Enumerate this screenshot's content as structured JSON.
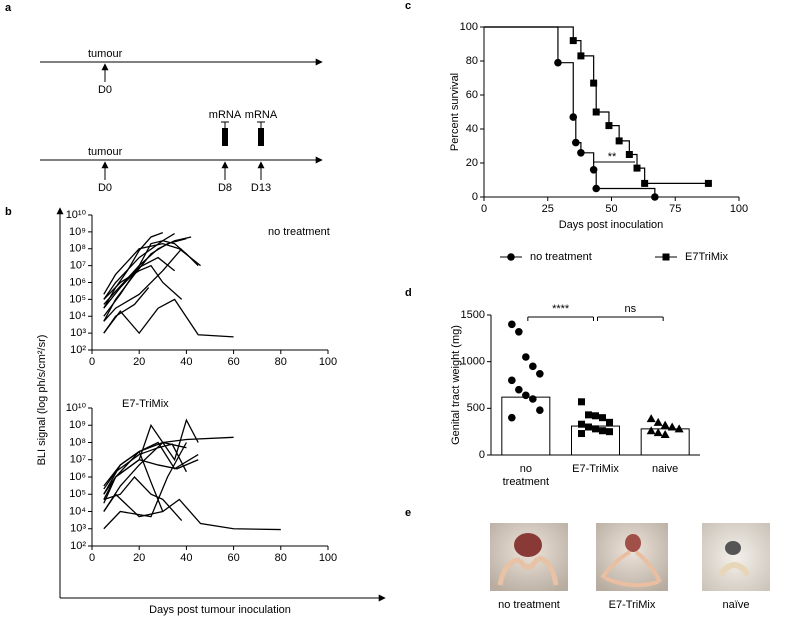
{
  "panel_labels": [
    "a",
    "b",
    "c",
    "d",
    "e"
  ],
  "timeline": {
    "rows": [
      {
        "events": [
          {
            "label": "tumour",
            "day": "D0"
          }
        ]
      },
      {
        "events": [
          {
            "label": "tumour",
            "day": "D0"
          },
          {
            "label": "mRNA",
            "day": "D8"
          },
          {
            "label": "mRNA",
            "day": "D13"
          }
        ]
      }
    ]
  },
  "chart_data": [
    {
      "type": "line",
      "annotation": "no treatment",
      "color": "#000000",
      "log_y": true,
      "y_label": "BLI signal (log ph/s/cm²/sr)",
      "x_label": "Days post tumour inoculation",
      "xlim": [
        0,
        100
      ],
      "xticks": [
        0,
        20,
        40,
        60,
        80,
        100
      ],
      "ylim": [
        100,
        10000000000
      ],
      "yticks": [
        {
          "value": 100,
          "label": "10²"
        },
        {
          "value": 1000,
          "label": "10³"
        },
        {
          "value": 10000,
          "label": "10⁴"
        },
        {
          "value": 100000,
          "label": "10⁵"
        },
        {
          "value": 1000000,
          "label": "10⁶"
        },
        {
          "value": 10000000,
          "label": "10⁷"
        },
        {
          "value": 100000000,
          "label": "10⁸"
        },
        {
          "value": 1000000000,
          "label": "10⁹"
        },
        {
          "value": 10000000000,
          "label": "10¹⁰"
        }
      ],
      "series": [
        {
          "x": [
            5,
            10,
            20,
            30,
            35,
            40,
            45
          ],
          "values": [
            100000,
            1000000,
            30000000,
            300000000,
            200000000,
            50000000,
            10000000
          ]
        },
        {
          "x": [
            5,
            10,
            15,
            20,
            25,
            30
          ],
          "values": [
            30000,
            500000,
            5000000,
            80000000,
            500000000,
            900000000
          ]
        },
        {
          "x": [
            5,
            12,
            20,
            28,
            35,
            42
          ],
          "values": [
            10000,
            200000,
            10000000,
            100000000,
            300000000,
            500000000
          ]
        },
        {
          "x": [
            5,
            10,
            18,
            25,
            32,
            40
          ],
          "values": [
            5000,
            100000,
            3000000,
            50000000,
            200000000,
            400000000
          ]
        },
        {
          "x": [
            5,
            10,
            20,
            30,
            37,
            46
          ],
          "values": [
            200000,
            3000000,
            100000000,
            200000000,
            100000000,
            10000000
          ]
        },
        {
          "x": [
            5,
            12,
            20,
            25,
            30,
            38
          ],
          "values": [
            100000,
            1000000,
            5000000,
            10000000,
            1000000,
            100000
          ]
        },
        {
          "x": [
            5,
            12,
            20,
            28,
            35
          ],
          "values": [
            30000,
            500000,
            8000000,
            30000000,
            5000000
          ]
        },
        {
          "x": [
            5,
            12,
            20,
            28,
            35,
            45,
            60
          ],
          "values": [
            1000,
            20000,
            1000,
            30000,
            100000,
            800,
            600
          ]
        },
        {
          "x": [
            5,
            10,
            20,
            30,
            38
          ],
          "values": [
            5000,
            30000,
            200000,
            5000000,
            100000000
          ]
        },
        {
          "x": [
            5,
            10,
            20,
            25,
            30,
            35
          ],
          "values": [
            50000,
            300000,
            10000000,
            200000000,
            300000000,
            800000000
          ]
        },
        {
          "x": [
            5,
            10,
            18,
            24
          ],
          "values": [
            1000,
            10000,
            50000,
            500000
          ]
        }
      ]
    },
    {
      "type": "line",
      "annotation": "E7-TriMix",
      "color": "#000000",
      "log_y": true,
      "xlim": [
        0,
        100
      ],
      "xticks": [
        0,
        20,
        40,
        60,
        80,
        100
      ],
      "ylim": [
        100,
        10000000000
      ],
      "yticks": [
        {
          "value": 100,
          "label": "10²"
        },
        {
          "value": 1000,
          "label": "10³"
        },
        {
          "value": 10000,
          "label": "10⁴"
        },
        {
          "value": 100000,
          "label": "10⁵"
        },
        {
          "value": 1000000,
          "label": "10⁶"
        },
        {
          "value": 10000000,
          "label": "10⁷"
        },
        {
          "value": 100000000,
          "label": "10⁸"
        },
        {
          "value": 1000000000,
          "label": "10⁹"
        },
        {
          "value": 10000000000,
          "label": "10¹⁰"
        }
      ],
      "series": [
        {
          "x": [
            5,
            10,
            20,
            30,
            40,
            60
          ],
          "values": [
            100000,
            1000000,
            30000000,
            100000000,
            150000000,
            200000000
          ]
        },
        {
          "x": [
            5,
            10,
            20,
            25,
            35,
            40,
            45
          ],
          "values": [
            30000,
            1000000,
            10000000,
            1000000000,
            10000000,
            2000000000,
            100000000
          ]
        },
        {
          "x": [
            5,
            12,
            20,
            30,
            40
          ],
          "values": [
            10000,
            300000,
            5000000,
            100000000,
            50000000
          ]
        },
        {
          "x": [
            5,
            12,
            25,
            32,
            40
          ],
          "values": [
            1000,
            10000,
            5000,
            1000000,
            100000000
          ]
        },
        {
          "x": [
            5,
            10,
            20,
            30,
            37,
            46,
            60,
            80
          ],
          "values": [
            10000,
            100000,
            5000,
            10000,
            50000,
            2000,
            1000,
            900
          ]
        },
        {
          "x": [
            5,
            10,
            20,
            28,
            36,
            45
          ],
          "values": [
            50000,
            1000000,
            10000000,
            5000000,
            3000000,
            10000000
          ]
        },
        {
          "x": [
            5,
            12,
            20,
            25,
            30
          ],
          "values": [
            100000,
            5000000,
            30000000,
            500000,
            10000
          ]
        },
        {
          "x": [
            5,
            12,
            20,
            28,
            35,
            45
          ],
          "values": [
            300000,
            5000000,
            30000000,
            100000000,
            3000000,
            20000000
          ]
        },
        {
          "x": [
            5,
            12,
            18,
            25,
            30,
            38
          ],
          "values": [
            50000,
            100000,
            1000000,
            100000,
            50000,
            3000
          ]
        },
        {
          "x": [
            5,
            10,
            20,
            28,
            34,
            40
          ],
          "values": [
            200000,
            2000000,
            20000000,
            50000000,
            80000000,
            2000000
          ]
        }
      ]
    },
    {
      "type": "step",
      "x_label": "Days post inoculation",
      "y_label": "Percent survival",
      "annotation": "**",
      "xlim": [
        0,
        100
      ],
      "xticks": [
        0,
        25,
        50,
        75,
        100
      ],
      "ylim": [
        0,
        100
      ],
      "yticks": [
        0,
        20,
        40,
        60,
        80,
        100
      ],
      "legend": "bottom",
      "series": [
        {
          "name": "no treatment",
          "color": "#000000",
          "marker": "circle",
          "x": [
            29,
            35,
            36,
            38,
            43,
            44,
            67
          ],
          "values": [
            79,
            47,
            32,
            26,
            16,
            5,
            0
          ]
        },
        {
          "name": "E7TriMix",
          "color": "#000000",
          "marker": "square",
          "x": [
            35,
            38,
            43,
            44,
            49,
            53,
            57,
            60,
            63,
            88
          ],
          "values": [
            92,
            83,
            67,
            50,
            42,
            33,
            25,
            17,
            8,
            8
          ]
        }
      ]
    },
    {
      "type": "bar_scatter",
      "y_label": "Genital tract weight (mg)",
      "categories": [
        "no treatment",
        "E7-TriMix",
        "naive"
      ],
      "values": [
        620,
        310,
        280
      ],
      "color": "#ffffff",
      "markers": [
        "circle",
        "square",
        "triangle"
      ],
      "points": [
        [
          1400,
          1320,
          1050,
          950,
          870,
          800,
          700,
          640,
          600,
          480,
          400
        ],
        [
          570,
          430,
          420,
          400,
          350,
          330,
          300,
          280,
          260,
          250,
          230
        ],
        [
          390,
          350,
          320,
          300,
          280,
          260,
          240,
          220
        ]
      ],
      "annotations": [
        "****",
        "ns"
      ],
      "ylim": [
        0,
        1500
      ],
      "yticks": [
        0,
        500,
        1000,
        1500
      ]
    }
  ],
  "photos": {
    "captions": [
      "no treatment",
      "E7-TriMix",
      "naïve"
    ]
  }
}
